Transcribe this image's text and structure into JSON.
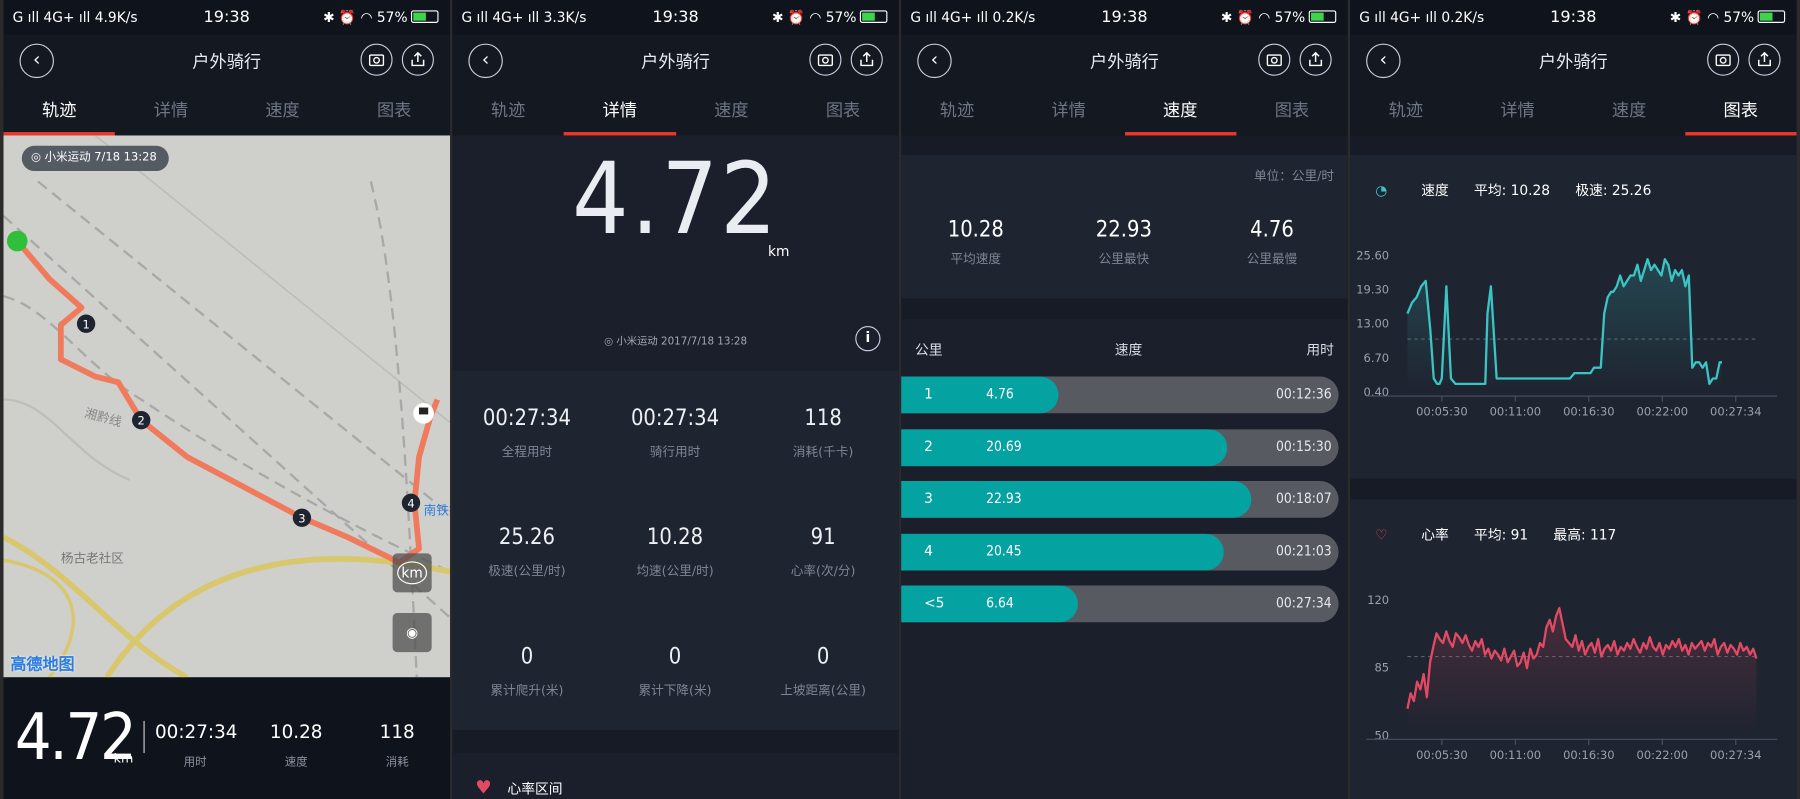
{
  "status_bars": [
    {
      "signal": "G ıll 4G+ ıll",
      "net": "4.9K/s",
      "time": "19:38",
      "battery": "57%"
    },
    {
      "signal": "G ıll 4G+ ıll",
      "net": "3.3K/s",
      "time": "19:38",
      "battery": "57%"
    },
    {
      "signal": "G ıll 4G+ ıll",
      "net": "0.2K/s",
      "time": "19:38",
      "battery": "57%"
    },
    {
      "signal": "G ıll 4G+ ıll",
      "net": "0.2K/s",
      "time": "19:38",
      "battery": "57%"
    }
  ],
  "header": {
    "title": "户外骑行"
  },
  "tabs": [
    "轨迹",
    "详情",
    "速度",
    "图表"
  ],
  "track": {
    "badge": "小米运动  7/18 13:28",
    "map_labels": [
      "湘黔线",
      "杨古老社区",
      "南铁技术"
    ],
    "map_logo": "高德地图",
    "km_button": "km",
    "markers": [
      "1",
      "2",
      "3",
      "4"
    ],
    "summary": {
      "distance": "4.72",
      "unit": "km",
      "items": [
        {
          "value": "00:27:34",
          "label": "用时"
        },
        {
          "value": "10.28",
          "label": "速度"
        },
        {
          "value": "118",
          "label": "消耗"
        }
      ]
    }
  },
  "detail": {
    "distance": "4.72",
    "unit": "km",
    "source": "小米运动    2017/7/18 13:28",
    "info": "i",
    "cells": [
      {
        "value": "00:27:34",
        "label": "全程用时"
      },
      {
        "value": "00:27:34",
        "label": "骑行用时"
      },
      {
        "value": "118",
        "label": "消耗(千卡)"
      },
      {
        "value": "25.26",
        "label": "极速(公里/时)"
      },
      {
        "value": "10.28",
        "label": "均速(公里/时)"
      },
      {
        "value": "91",
        "label": "心率(次/分)"
      },
      {
        "value": "0",
        "label": "累计爬升(米)"
      },
      {
        "value": "0",
        "label": "累计下降(米)"
      },
      {
        "value": "0",
        "label": "上坡距离(公里)"
      }
    ],
    "heart_zone_title": "心率区间"
  },
  "speed": {
    "unit_label": "单位：公里/时",
    "stats": [
      {
        "value": "10.28",
        "label": "平均速度"
      },
      {
        "value": "22.93",
        "label": "公里最快"
      },
      {
        "value": "4.76",
        "label": "公里最慢"
      }
    ],
    "list_headers": [
      "公里",
      "速度",
      "用时"
    ],
    "rows": [
      {
        "km": "1",
        "speed": "4.76",
        "time": "00:12:36",
        "fill": 0.36
      },
      {
        "km": "2",
        "speed": "20.69",
        "time": "00:15:30",
        "fill": 0.745
      },
      {
        "km": "3",
        "speed": "22.93",
        "time": "00:18:07",
        "fill": 0.8
      },
      {
        "km": "4",
        "speed": "20.45",
        "time": "00:21:03",
        "fill": 0.738
      },
      {
        "km": "<5",
        "speed": "6.64",
        "time": "00:27:34",
        "fill": 0.405
      }
    ]
  },
  "charts": {
    "speed_header": {
      "name": "速度",
      "avg": "平均: 10.28",
      "max": "极速: 25.26"
    },
    "heart_header": {
      "name": "心率",
      "avg": "平均: 91",
      "max": "最高: 117"
    }
  },
  "colors": {
    "accent": "#e8382b",
    "teal": "#05a2a2",
    "speed_line": "#3cc4c4",
    "heart_line": "#e24a64",
    "route": "#f07a5c"
  },
  "chart_data": [
    {
      "type": "line",
      "title": "速度",
      "y_ticks": [
        "25.60",
        "19.30",
        "13.00",
        "6.70",
        "0.40"
      ],
      "x_ticks": [
        "00:05:30",
        "00:11:00",
        "00:16:30",
        "00:22:00",
        "00:27:34"
      ],
      "ylim": [
        0.4,
        25.6
      ],
      "avg_line": 10.28,
      "x_minutes": [
        0,
        0.4,
        0.8,
        1.2,
        1.6,
        2.0,
        2.3,
        2.6,
        2.8,
        3.0,
        3.4,
        3.8,
        4.2,
        4.6,
        5.0,
        5.4,
        5.8,
        6.1,
        6.4,
        6.6,
        6.8,
        7.0,
        7.3,
        7.8,
        8.4,
        8.9,
        9.3,
        9.6,
        9.9,
        10.1,
        10.4,
        10.7,
        11.2,
        12.0,
        12.8,
        13.5,
        14.2,
        14.6,
        15.0,
        15.3,
        15.6,
        16.0,
        16.3,
        16.6,
        16.9,
        17.2,
        17.5,
        17.8,
        18.0,
        18.3,
        18.6,
        18.9,
        19.2,
        19.5,
        19.8,
        20.1,
        20.4,
        20.7,
        21.0,
        21.3,
        21.6,
        21.9,
        22.2,
        22.5,
        22.8,
        23.1,
        23.4,
        23.7,
        24.0,
        24.3,
        24.6,
        24.9,
        25.2,
        25.5,
        25.8,
        26.1,
        26.4,
        26.7,
        27.0,
        27.3,
        27.5
      ],
      "values": [
        15,
        17,
        18,
        20,
        21,
        12,
        3,
        2,
        2,
        3,
        20,
        3,
        2,
        2,
        2,
        2,
        2,
        2,
        2,
        2,
        2,
        15,
        20,
        3,
        3,
        3,
        3,
        3,
        3,
        3,
        3,
        3,
        3,
        3,
        3,
        3,
        3,
        4,
        4,
        4,
        4,
        4,
        5,
        5,
        5,
        15,
        18,
        19,
        19,
        20,
        22,
        20,
        21,
        22,
        22,
        24,
        21,
        23,
        25,
        23,
        24,
        23,
        22,
        25,
        24,
        21,
        23,
        22,
        23,
        20,
        22,
        5,
        6,
        6,
        5,
        6,
        2,
        3,
        3,
        6,
        6
      ]
    },
    {
      "type": "line",
      "title": "心率",
      "y_ticks": [
        "120",
        "85",
        "50"
      ],
      "x_ticks": [
        "00:05:30",
        "00:11:00",
        "00:16:30",
        "00:22:00",
        "00:27:34"
      ],
      "ylim": [
        50,
        120
      ],
      "avg_line": 91,
      "values": [
        64,
        72,
        68,
        78,
        74,
        82,
        70,
        88,
        96,
        103,
        100,
        98,
        104,
        99,
        96,
        103,
        101,
        98,
        102,
        97,
        94,
        99,
        96,
        100,
        92,
        95,
        90,
        94,
        92,
        89,
        95,
        88,
        91,
        94,
        86,
        88,
        93,
        85,
        95,
        90,
        92,
        98,
        96,
        106,
        110,
        104,
        112,
        116,
        108,
        100,
        98,
        96,
        102,
        94,
        99,
        92,
        96,
        98,
        93,
        100,
        91,
        95,
        97,
        94,
        99,
        92,
        96,
        94,
        98,
        95,
        100,
        96,
        93,
        98,
        95,
        101,
        96,
        94,
        98,
        92,
        97,
        95,
        99,
        96,
        100,
        94,
        97,
        92,
        98,
        95,
        97,
        99,
        94,
        98,
        96,
        100,
        92,
        96,
        98,
        93,
        97,
        95,
        92,
        98,
        94,
        96,
        92,
        95,
        90
      ]
    }
  ]
}
